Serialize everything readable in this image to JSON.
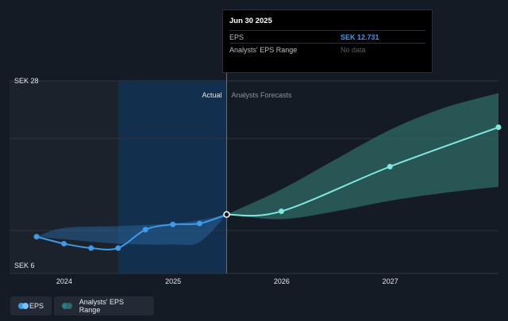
{
  "tooltip": {
    "date": "Jun 30 2025",
    "rows": [
      {
        "label": "EPS",
        "value": "SEK 12.731"
      },
      {
        "label": "Analysts' EPS Range",
        "value": "No data"
      }
    ]
  },
  "legend": {
    "eps_label": "EPS",
    "range_label": "Analysts' EPS Range"
  },
  "colors": {
    "eps": "#3f9ae8",
    "forecast": "#7fe8e0",
    "range_fill": "#2f6b66",
    "actual_shade": "#12345a"
  },
  "chart_data": {
    "type": "line",
    "y_top_label": "SEK 28",
    "y_bottom_label": "SEK 6",
    "ylim": [
      6,
      28
    ],
    "xlim": [
      "2023-07-01",
      "2027-12-31"
    ],
    "x_ticks": [
      {
        "label": "2024",
        "date": "2024-01-01"
      },
      {
        "label": "2025",
        "date": "2025-01-01"
      },
      {
        "label": "2026",
        "date": "2026-01-01"
      },
      {
        "label": "2027",
        "date": "2027-01-01"
      }
    ],
    "divider_date": "2025-06-30",
    "shade_start_date": "2024-06-30",
    "actual_label": "Actual",
    "forecast_label": "Analysts Forecasts",
    "series": [
      {
        "name": "EPS",
        "kind": "actual",
        "points": [
          {
            "date": "2023-09-30",
            "value": 10.2
          },
          {
            "date": "2023-12-31",
            "value": 9.4
          },
          {
            "date": "2024-03-31",
            "value": 8.9
          },
          {
            "date": "2024-06-30",
            "value": 8.9
          },
          {
            "date": "2024-09-30",
            "value": 11.0
          },
          {
            "date": "2024-12-31",
            "value": 11.6
          },
          {
            "date": "2025-03-31",
            "value": 11.7
          },
          {
            "date": "2025-06-30",
            "value": 12.731
          }
        ]
      },
      {
        "name": "EPS",
        "kind": "forecast",
        "points": [
          {
            "date": "2025-06-30",
            "value": 12.731
          },
          {
            "date": "2025-12-31",
            "value": 13.1
          },
          {
            "date": "2026-12-31",
            "value": 18.2
          },
          {
            "date": "2027-12-31",
            "value": 22.7
          }
        ]
      }
    ],
    "range_actual": {
      "x": [
        "2023-09-30",
        "2023-12-31",
        "2024-06-30",
        "2024-12-31",
        "2025-03-31",
        "2025-06-30"
      ],
      "upper": [
        10.2,
        11.2,
        11.4,
        11.7,
        12.1,
        12.731
      ],
      "lower": [
        10.2,
        9.9,
        9.4,
        9.3,
        9.6,
        12.731
      ]
    },
    "range_forecast": {
      "x": [
        "2025-06-30",
        "2025-12-31",
        "2026-06-30",
        "2026-12-31",
        "2027-06-30",
        "2027-12-31"
      ],
      "upper": [
        12.731,
        15.6,
        19.0,
        22.4,
        24.9,
        26.6
      ],
      "lower": [
        12.731,
        12.2,
        13.1,
        14.3,
        15.2,
        15.9
      ]
    }
  }
}
